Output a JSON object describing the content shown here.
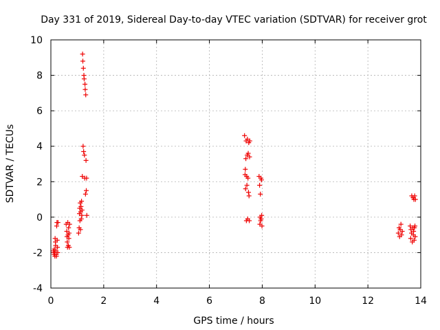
{
  "chart_data": {
    "type": "scatter",
    "title": "Day 331 of 2019, Sidereal Day-to-day VTEC variation (SDTVAR) for receiver grot",
    "xlabel": "GPS time / hours",
    "ylabel": "SDTVAR / TECUs",
    "xlim": [
      0,
      14
    ],
    "ylim": [
      -4,
      10
    ],
    "xticks": [
      "0",
      "2",
      "4",
      "6",
      "8",
      "10",
      "12",
      "14"
    ],
    "yticks": [
      "-4",
      "-2",
      "0",
      "2",
      "4",
      "6",
      "8",
      "10"
    ],
    "grid": true,
    "marker": "+",
    "color": "#ee0000",
    "series": [
      {
        "name": "SDTVAR",
        "points": [
          [
            0.1,
            -1.9
          ],
          [
            0.11,
            -2.0
          ],
          [
            0.12,
            -2.1
          ],
          [
            0.13,
            -1.8
          ],
          [
            0.14,
            -2.0
          ],
          [
            0.15,
            -2.2
          ],
          [
            0.16,
            -1.2
          ],
          [
            0.17,
            -1.4
          ],
          [
            0.18,
            -1.6
          ],
          [
            0.19,
            -1.9
          ],
          [
            0.2,
            -2.1
          ],
          [
            0.21,
            -2.2
          ],
          [
            0.22,
            -0.5
          ],
          [
            0.23,
            -0.3
          ],
          [
            0.24,
            -1.3
          ],
          [
            0.25,
            -1.7
          ],
          [
            0.26,
            -2.0
          ],
          [
            0.27,
            -0.3
          ],
          [
            0.58,
            -0.4
          ],
          [
            0.6,
            -0.8
          ],
          [
            0.61,
            -1.1
          ],
          [
            0.62,
            -1.4
          ],
          [
            0.63,
            -1.7
          ],
          [
            0.64,
            -0.3
          ],
          [
            0.65,
            -1.0
          ],
          [
            0.66,
            -1.6
          ],
          [
            0.67,
            -0.6
          ],
          [
            0.68,
            -1.2
          ],
          [
            0.69,
            -0.9
          ],
          [
            0.7,
            -1.7
          ],
          [
            0.71,
            -0.4
          ],
          [
            1.05,
            -0.9
          ],
          [
            1.07,
            -0.6
          ],
          [
            1.08,
            0.2
          ],
          [
            1.09,
            0.5
          ],
          [
            1.1,
            -0.2
          ],
          [
            1.11,
            0.8
          ],
          [
            1.12,
            -0.7
          ],
          [
            1.13,
            0.3
          ],
          [
            1.14,
            0.6
          ],
          [
            1.15,
            -0.1
          ],
          [
            1.16,
            0.9
          ],
          [
            1.17,
            0.1
          ],
          [
            1.18,
            0.4
          ],
          [
            1.19,
            2.3
          ],
          [
            1.2,
            9.2
          ],
          [
            1.21,
            8.8
          ],
          [
            1.22,
            4.0
          ],
          [
            1.23,
            8.4
          ],
          [
            1.24,
            3.7
          ],
          [
            1.25,
            8.0
          ],
          [
            1.26,
            7.8
          ],
          [
            1.27,
            3.5
          ],
          [
            1.28,
            2.2
          ],
          [
            1.29,
            7.5
          ],
          [
            1.3,
            7.2
          ],
          [
            1.31,
            1.3
          ],
          [
            1.32,
            6.9
          ],
          [
            1.33,
            3.2
          ],
          [
            1.34,
            1.5
          ],
          [
            1.35,
            2.2
          ],
          [
            1.36,
            0.1
          ],
          [
            7.33,
            4.6
          ],
          [
            7.35,
            2.4
          ],
          [
            7.36,
            2.7
          ],
          [
            7.37,
            1.6
          ],
          [
            7.38,
            3.3
          ],
          [
            7.39,
            4.3
          ],
          [
            7.4,
            -0.2
          ],
          [
            7.41,
            2.3
          ],
          [
            7.42,
            1.8
          ],
          [
            7.43,
            3.5
          ],
          [
            7.44,
            4.4
          ],
          [
            7.45,
            -0.1
          ],
          [
            7.46,
            2.2
          ],
          [
            7.47,
            3.6
          ],
          [
            7.48,
            1.4
          ],
          [
            7.49,
            4.2
          ],
          [
            7.5,
            1.2
          ],
          [
            7.51,
            -0.2
          ],
          [
            7.52,
            3.4
          ],
          [
            7.53,
            4.3
          ],
          [
            7.88,
            2.3
          ],
          [
            7.9,
            1.8
          ],
          [
            7.91,
            -0.4
          ],
          [
            7.92,
            0.0
          ],
          [
            7.93,
            1.3
          ],
          [
            7.94,
            -0.2
          ],
          [
            7.95,
            2.2
          ],
          [
            7.96,
            -0.1
          ],
          [
            7.97,
            2.1
          ],
          [
            7.98,
            0.1
          ],
          [
            7.99,
            -0.5
          ],
          [
            13.15,
            -0.9
          ],
          [
            13.18,
            -0.6
          ],
          [
            13.2,
            -1.1
          ],
          [
            13.22,
            -0.7
          ],
          [
            13.25,
            -0.4
          ],
          [
            13.27,
            -1.0
          ],
          [
            13.3,
            -0.8
          ],
          [
            13.6,
            -0.5
          ],
          [
            13.62,
            -1.2
          ],
          [
            13.63,
            -0.7
          ],
          [
            13.65,
            -0.9
          ],
          [
            13.66,
            1.2
          ],
          [
            13.68,
            -1.4
          ],
          [
            13.7,
            -0.6
          ],
          [
            13.71,
            1.1
          ],
          [
            13.72,
            -1.0
          ],
          [
            13.73,
            -0.8
          ],
          [
            13.74,
            1.0
          ],
          [
            13.75,
            -1.3
          ],
          [
            13.76,
            -0.6
          ],
          [
            13.77,
            1.2
          ],
          [
            13.78,
            -0.5
          ],
          [
            13.79,
            -1.1
          ],
          [
            13.8,
            1.0
          ]
        ]
      }
    ]
  }
}
